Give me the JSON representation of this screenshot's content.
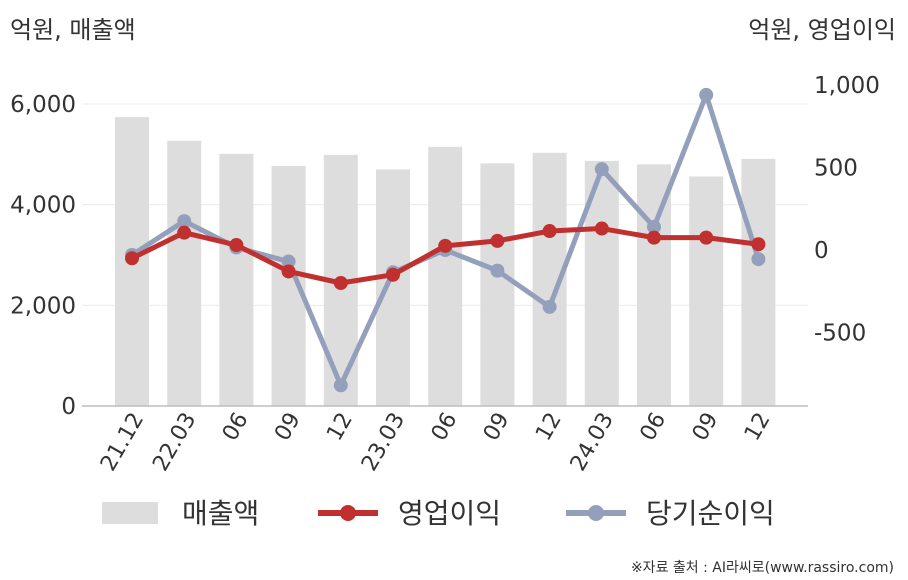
{
  "chart_data": {
    "type": "bar+line",
    "left_axis_unit": "억원, 매출액",
    "right_axis_unit": "억원, 영업이익",
    "categories": [
      "21.12",
      "22.03",
      "06",
      "09",
      "12",
      "23.03",
      "06",
      "09",
      "12",
      "24.03",
      "06",
      "09",
      "12"
    ],
    "left_axis": {
      "min": 0,
      "max": 6000,
      "ticks": [
        0,
        2000,
        4000,
        6000
      ],
      "tick_labels": [
        "0",
        "2,000",
        "4,000",
        "6,000"
      ]
    },
    "right_axis": {
      "min": -950,
      "max": 1000,
      "ticks": [
        -500,
        0,
        500,
        1000
      ],
      "tick_labels": [
        "-500",
        "0",
        "500",
        "1,000"
      ]
    },
    "grid": true,
    "legend_position": "bottom",
    "series": [
      {
        "name": "매출액",
        "kind": "bar",
        "axis": "left",
        "color": "#dddddd",
        "values": [
          5740,
          5270,
          5010,
          4770,
          4990,
          4700,
          5150,
          4820,
          5030,
          4870,
          4800,
          4560,
          4910
        ]
      },
      {
        "name": "영업이익",
        "kind": "line",
        "axis": "right",
        "color": "#c0302e",
        "values": [
          -50,
          105,
          30,
          -130,
          -200,
          -150,
          25,
          55,
          115,
          130,
          75,
          75,
          35
        ]
      },
      {
        "name": "당기순이익",
        "kind": "line",
        "axis": "right",
        "color": "#94a0bb",
        "values": [
          -30,
          175,
          15,
          -70,
          -820,
          -135,
          0,
          -125,
          -345,
          490,
          140,
          940,
          -55
        ]
      }
    ]
  },
  "source_text": "※자료 출처 : AI라씨로(www.rassiro.com)"
}
